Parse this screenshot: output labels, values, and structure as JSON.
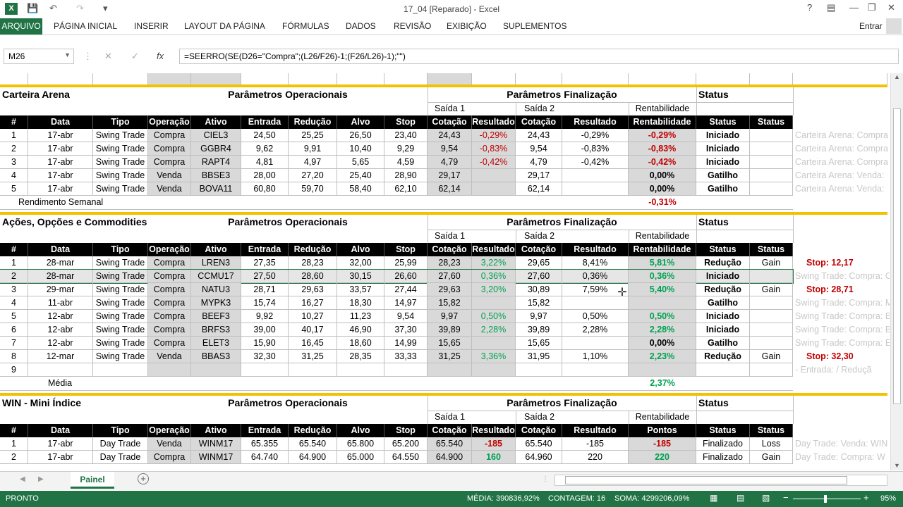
{
  "app": {
    "title": "17_04 [Reparado] - Excel",
    "user": "Entrar"
  },
  "ribbon": {
    "tabs": [
      "ARQUIVO",
      "PÁGINA INICIAL",
      "INSERIR",
      "LAYOUT DA PÁGINA",
      "FÓRMULAS",
      "DADOS",
      "REVISÃO",
      "EXIBIÇÃO",
      "SUPLEMENTOS"
    ]
  },
  "formula_bar": {
    "name_box": "M26",
    "formula": "=SEERRO(SE(D26=\"Compra\";(L26/F26)-1;(F26/L26)-1);\"\")"
  },
  "sections": [
    {
      "title": "Carteira Arena",
      "params": "Parâmetros Operacionais",
      "final": "Parâmetros Finalização",
      "status": "Status",
      "sub": {
        "s1": "Saída 1",
        "s2": "Saída 2",
        "rent": "Rentabilidade"
      },
      "headers": [
        "#",
        "Data",
        "Tipo",
        "Operação",
        "Ativo",
        "Entrada",
        "Redução",
        "Alvo",
        "Stop",
        "Cotação",
        "Resultado",
        "Cotação",
        "Resultado",
        "Rentabilidade",
        "Status",
        "Status"
      ],
      "rows": [
        [
          "1",
          "17-abr",
          "Swing Trade",
          "Compra",
          "CIEL3",
          "24,50",
          "25,25",
          "26,50",
          "23,40",
          "24,43",
          "-0,29%",
          "24,43",
          "-0,29%",
          "-0,29%",
          "Iniciado",
          ""
        ],
        [
          "2",
          "17-abr",
          "Swing Trade",
          "Compra",
          "GGBR4",
          "9,62",
          "9,91",
          "10,40",
          "9,29",
          "9,54",
          "-0,83%",
          "9,54",
          "-0,83%",
          "-0,83%",
          "Iniciado",
          ""
        ],
        [
          "3",
          "17-abr",
          "Swing Trade",
          "Compra",
          "RAPT4",
          "4,81",
          "4,97",
          "5,65",
          "4,59",
          "4,79",
          "-0,42%",
          "4,79",
          "-0,42%",
          "-0,42%",
          "Iniciado",
          ""
        ],
        [
          "4",
          "17-abr",
          "Swing Trade",
          "Venda",
          "BBSE3",
          "28,00",
          "27,20",
          "25,40",
          "28,90",
          "29,17",
          "",
          "29,17",
          "",
          "0,00%",
          "Gatilho",
          ""
        ],
        [
          "5",
          "17-abr",
          "Swing Trade",
          "Venda",
          "BOVA11",
          "60,80",
          "59,70",
          "58,40",
          "62,10",
          "62,14",
          "",
          "62,14",
          "",
          "0,00%",
          "Gatilho",
          ""
        ]
      ],
      "side": [
        "Carteira Arena: Compra",
        "Carteira Arena: Compra",
        "Carteira Arena: Compra",
        "Carteira Arena: Venda:",
        "Carteira Arena: Venda:"
      ],
      "footer_label": "Rendimento Semanal",
      "footer_value": "-0,31%"
    },
    {
      "title": "Ações, Opções e Commodities",
      "params": "Parâmetros Operacionais",
      "final": "Parâmetros Finalização",
      "status": "Status",
      "sub": {
        "s1": "Saída 1",
        "s2": "Saída 2",
        "rent": "Rentabilidade"
      },
      "headers": [
        "#",
        "Data",
        "Tipo",
        "Operação",
        "Ativo",
        "Entrada",
        "Redução",
        "Alvo",
        "Stop",
        "Cotação",
        "Resultado",
        "Cotação",
        "Resultado",
        "Rentabilidade",
        "Status",
        "Status"
      ],
      "rows": [
        [
          "1",
          "28-mar",
          "Swing Trade",
          "Compra",
          "LREN3",
          "27,35",
          "28,23",
          "32,00",
          "25,99",
          "28,23",
          "3,22%",
          "29,65",
          "8,41%",
          "5,81%",
          "Redução",
          "Gain"
        ],
        [
          "2",
          "28-mar",
          "Swing Trade",
          "Compra",
          "CCMU17",
          "27,50",
          "28,60",
          "30,15",
          "26,60",
          "27,60",
          "0,36%",
          "27,60",
          "0,36%",
          "0,36%",
          "Iniciado",
          ""
        ],
        [
          "3",
          "29-mar",
          "Swing Trade",
          "Compra",
          "NATU3",
          "28,71",
          "29,63",
          "33,57",
          "27,44",
          "29,63",
          "3,20%",
          "30,89",
          "7,59%",
          "5,40%",
          "Redução",
          "Gain"
        ],
        [
          "4",
          "11-abr",
          "Swing Trade",
          "Compra",
          "MYPK3",
          "15,74",
          "16,27",
          "18,30",
          "14,97",
          "15,82",
          "",
          "15,82",
          "",
          "",
          "Gatilho",
          ""
        ],
        [
          "5",
          "12-abr",
          "Swing Trade",
          "Compra",
          "BEEF3",
          "9,92",
          "10,27",
          "11,23",
          "9,54",
          "9,97",
          "0,50%",
          "9,97",
          "0,50%",
          "0,50%",
          "Iniciado",
          ""
        ],
        [
          "6",
          "12-abr",
          "Swing Trade",
          "Compra",
          "BRFS3",
          "39,00",
          "40,17",
          "46,90",
          "37,30",
          "39,89",
          "2,28%",
          "39,89",
          "2,28%",
          "2,28%",
          "Iniciado",
          ""
        ],
        [
          "7",
          "12-abr",
          "Swing Trade",
          "Compra",
          "ELET3",
          "15,90",
          "16,45",
          "18,60",
          "14,99",
          "15,65",
          "",
          "15,65",
          "",
          "0,00%",
          "Gatilho",
          ""
        ],
        [
          "8",
          "12-mar",
          "Swing Trade",
          "Venda",
          "BBAS3",
          "32,30",
          "31,25",
          "28,35",
          "33,33",
          "31,25",
          "3,36%",
          "31,95",
          "1,10%",
          "2,23%",
          "Redução",
          "Gain"
        ],
        [
          "9",
          "",
          "",
          "",
          "",
          "",
          "",
          "",
          "",
          "",
          "",
          "",
          "",
          "",
          "",
          ""
        ]
      ],
      "side": [
        "Stop: 12,17",
        "Swing Trade: Compra: C",
        "Stop: 28,71",
        "Swing Trade: Compra: M",
        "Swing Trade: Compra: B",
        "Swing Trade: Compra: B",
        "Swing Trade: Compra: E",
        "Stop: 32,30",
        "- Entrada: / Reduçã"
      ],
      "footer_label": "Média",
      "footer_value": "2,37%"
    },
    {
      "title": "WIN - Mini Índice",
      "params": "Parâmetros Operacionais",
      "final": "Parâmetros Finalização",
      "status": "Status",
      "sub": {
        "s1": "Saída 1",
        "s2": "Saída 2",
        "rent": "Rentabilidade"
      },
      "headers": [
        "#",
        "Data",
        "Tipo",
        "Operação",
        "Ativo",
        "Entrada",
        "Redução",
        "Alvo",
        "Stop",
        "Cotação",
        "Resultado",
        "Cotação",
        "Resultado",
        "Pontos",
        "Status",
        "Status"
      ],
      "rows": [
        [
          "1",
          "17-abr",
          "Day Trade",
          "Venda",
          "WINM17",
          "65.355",
          "65.540",
          "65.800",
          "65.200",
          "65.540",
          "-185",
          "65.540",
          "-185",
          "-185",
          "Finalizado",
          "Loss"
        ],
        [
          "2",
          "17-abr",
          "Day Trade",
          "Compra",
          "WINM17",
          "64.740",
          "64.900",
          "65.000",
          "64.550",
          "64.900",
          "160",
          "64.960",
          "220",
          "220",
          "Finalizado",
          "Gain"
        ]
      ],
      "side": [
        "Day Trade: Venda: WIN",
        "Day Trade: Compra: W"
      ],
      "footer_label": "",
      "footer_value": ""
    }
  ],
  "sheet": {
    "tab": "Painel"
  },
  "status_bar": {
    "mode": "PRONTO",
    "media": "MÉDIA: 390836,92%",
    "contagem": "CONTAGEM: 16",
    "soma": "SOMA: 4299206,09%",
    "zoom": "95%"
  }
}
